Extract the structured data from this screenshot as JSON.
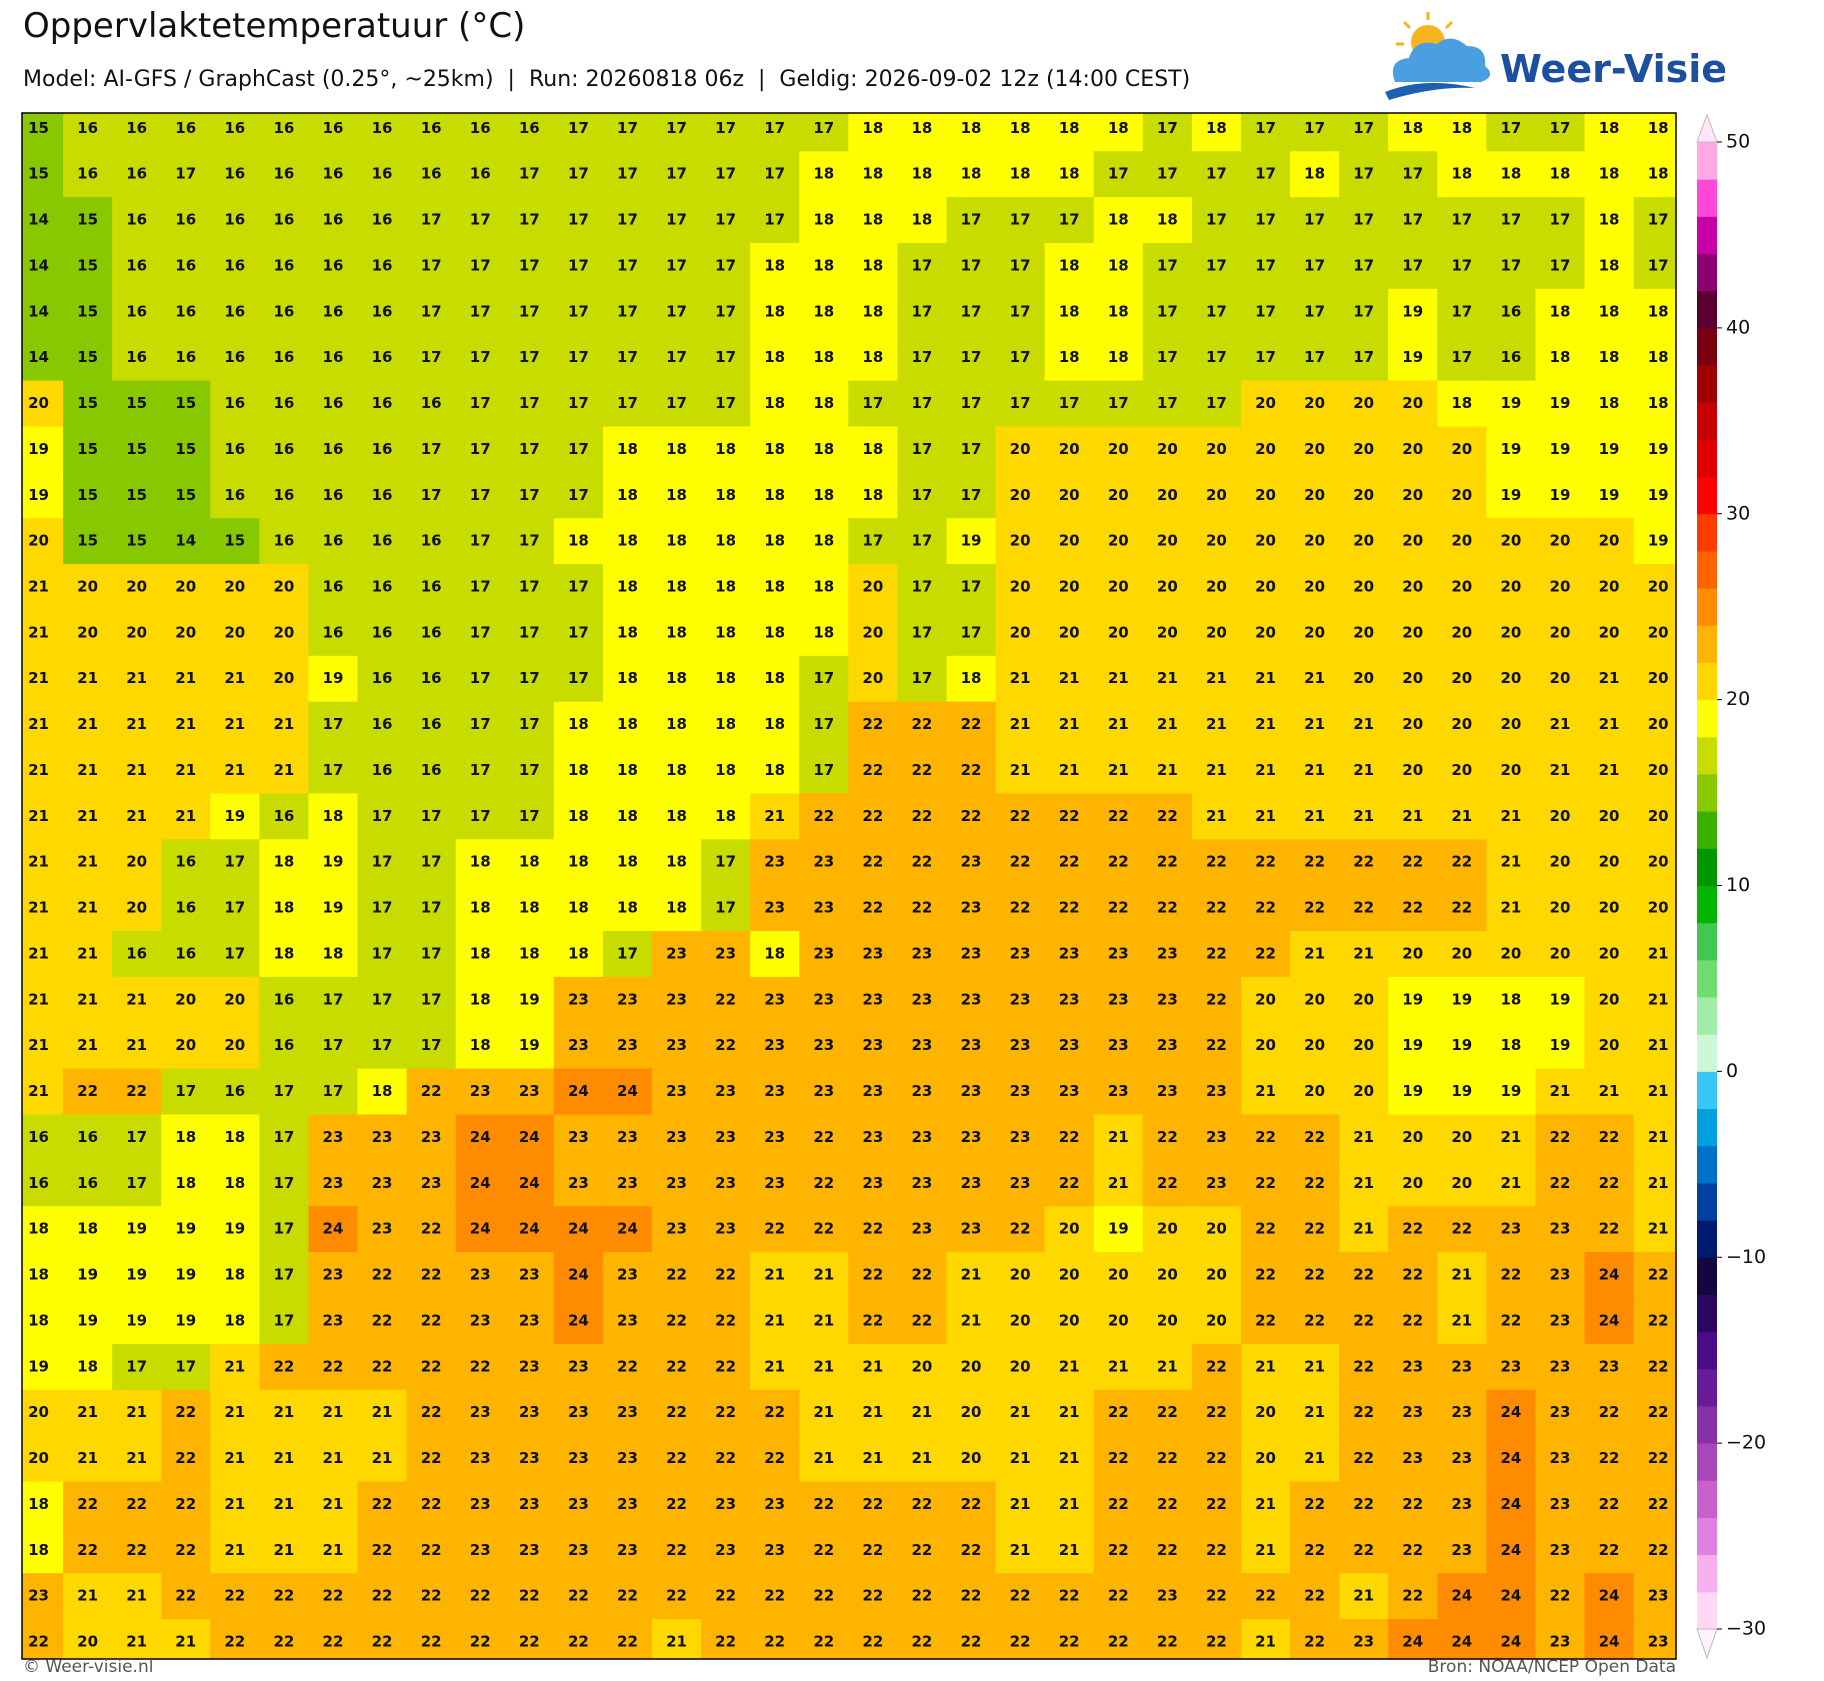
{
  "header": {
    "title": "Oppervlaktetemperatuur (°C)",
    "subtitle": "Model: AI-GFS / GraphCast (0.25°, ~25km)  |  Run: 20260818 06z  |  Geldig: 2026-09-02 12z (14:00 CEST)"
  },
  "logo": {
    "text": "Weer-Visie"
  },
  "chart_data": {
    "type": "heatmap",
    "values": [
      [
        15,
        16,
        16,
        16,
        16,
        16,
        16,
        16,
        16,
        16,
        16,
        17,
        17,
        17,
        17,
        17,
        17,
        18,
        18,
        18,
        18,
        18,
        18,
        17,
        18,
        17,
        17,
        17,
        18,
        18,
        17,
        17,
        18,
        18
      ],
      [
        15,
        16,
        16,
        17,
        16,
        16,
        16,
        16,
        16,
        16,
        17,
        17,
        17,
        17,
        17,
        17,
        18,
        18,
        18,
        18,
        18,
        18,
        17,
        17,
        17,
        17,
        18,
        17,
        17,
        18,
        18,
        18,
        18,
        18
      ],
      [
        14,
        15,
        16,
        16,
        16,
        16,
        16,
        16,
        17,
        17,
        17,
        17,
        17,
        17,
        17,
        17,
        18,
        18,
        18,
        17,
        17,
        17,
        18,
        18,
        17,
        17,
        17,
        17,
        17,
        17,
        17,
        17,
        18,
        17
      ],
      [
        14,
        15,
        16,
        16,
        16,
        16,
        16,
        16,
        17,
        17,
        17,
        17,
        17,
        17,
        17,
        18,
        18,
        18,
        17,
        17,
        17,
        18,
        18,
        17,
        17,
        17,
        17,
        17,
        17,
        17,
        17,
        17,
        18,
        17
      ],
      [
        14,
        15,
        16,
        16,
        16,
        16,
        16,
        16,
        17,
        17,
        17,
        17,
        17,
        17,
        17,
        18,
        18,
        18,
        17,
        17,
        17,
        18,
        18,
        17,
        17,
        17,
        17,
        17,
        19,
        17,
        16,
        18,
        18,
        18
      ],
      [
        14,
        15,
        16,
        16,
        16,
        16,
        16,
        16,
        17,
        17,
        17,
        17,
        17,
        17,
        17,
        18,
        18,
        18,
        17,
        17,
        17,
        18,
        18,
        17,
        17,
        17,
        17,
        17,
        19,
        17,
        16,
        18,
        18,
        18
      ],
      [
        20,
        15,
        15,
        15,
        16,
        16,
        16,
        16,
        16,
        17,
        17,
        17,
        17,
        17,
        17,
        18,
        18,
        17,
        17,
        17,
        17,
        17,
        17,
        17,
        17,
        20,
        20,
        20,
        20,
        18,
        19,
        19,
        18,
        18
      ],
      [
        19,
        15,
        15,
        15,
        16,
        16,
        16,
        16,
        17,
        17,
        17,
        17,
        18,
        18,
        18,
        18,
        18,
        18,
        17,
        17,
        20,
        20,
        20,
        20,
        20,
        20,
        20,
        20,
        20,
        20,
        19,
        19,
        19,
        19
      ],
      [
        19,
        15,
        15,
        15,
        16,
        16,
        16,
        16,
        17,
        17,
        17,
        17,
        18,
        18,
        18,
        18,
        18,
        18,
        17,
        17,
        20,
        20,
        20,
        20,
        20,
        20,
        20,
        20,
        20,
        20,
        19,
        19,
        19,
        19
      ],
      [
        20,
        15,
        15,
        14,
        15,
        16,
        16,
        16,
        16,
        17,
        17,
        18,
        18,
        18,
        18,
        18,
        18,
        17,
        17,
        19,
        20,
        20,
        20,
        20,
        20,
        20,
        20,
        20,
        20,
        20,
        20,
        20,
        20,
        19
      ],
      [
        21,
        20,
        20,
        20,
        20,
        20,
        16,
        16,
        16,
        17,
        17,
        17,
        18,
        18,
        18,
        18,
        18,
        20,
        17,
        17,
        20,
        20,
        20,
        20,
        20,
        20,
        20,
        20,
        20,
        20,
        20,
        20,
        20,
        20
      ],
      [
        21,
        20,
        20,
        20,
        20,
        20,
        16,
        16,
        16,
        17,
        17,
        17,
        18,
        18,
        18,
        18,
        18,
        20,
        17,
        17,
        20,
        20,
        20,
        20,
        20,
        20,
        20,
        20,
        20,
        20,
        20,
        20,
        20,
        20
      ],
      [
        21,
        21,
        21,
        21,
        21,
        20,
        19,
        16,
        16,
        17,
        17,
        17,
        18,
        18,
        18,
        18,
        17,
        20,
        17,
        18,
        21,
        21,
        21,
        21,
        21,
        21,
        21,
        20,
        20,
        20,
        20,
        20,
        21,
        20
      ],
      [
        21,
        21,
        21,
        21,
        21,
        21,
        17,
        16,
        16,
        17,
        17,
        18,
        18,
        18,
        18,
        18,
        17,
        22,
        22,
        22,
        21,
        21,
        21,
        21,
        21,
        21,
        21,
        21,
        20,
        20,
        20,
        21,
        21,
        20
      ],
      [
        21,
        21,
        21,
        21,
        21,
        21,
        17,
        16,
        16,
        17,
        17,
        18,
        18,
        18,
        18,
        18,
        17,
        22,
        22,
        22,
        21,
        21,
        21,
        21,
        21,
        21,
        21,
        21,
        20,
        20,
        20,
        21,
        21,
        20
      ],
      [
        21,
        21,
        21,
        21,
        19,
        16,
        18,
        17,
        17,
        17,
        17,
        18,
        18,
        18,
        18,
        21,
        22,
        22,
        22,
        22,
        22,
        22,
        22,
        22,
        21,
        21,
        21,
        21,
        21,
        21,
        21,
        20,
        20,
        20
      ],
      [
        21,
        21,
        20,
        16,
        17,
        18,
        19,
        17,
        17,
        18,
        18,
        18,
        18,
        18,
        17,
        23,
        23,
        22,
        22,
        23,
        22,
        22,
        22,
        22,
        22,
        22,
        22,
        22,
        22,
        22,
        21,
        20,
        20,
        20
      ],
      [
        21,
        21,
        20,
        16,
        17,
        18,
        19,
        17,
        17,
        18,
        18,
        18,
        18,
        18,
        17,
        23,
        23,
        22,
        22,
        23,
        22,
        22,
        22,
        22,
        22,
        22,
        22,
        22,
        22,
        22,
        21,
        20,
        20,
        20
      ],
      [
        21,
        21,
        16,
        16,
        17,
        18,
        18,
        17,
        17,
        18,
        18,
        18,
        17,
        23,
        23,
        18,
        23,
        23,
        23,
        23,
        23,
        23,
        23,
        23,
        22,
        22,
        21,
        21,
        20,
        20,
        20,
        20,
        20,
        21
      ],
      [
        21,
        21,
        21,
        20,
        20,
        16,
        17,
        17,
        17,
        18,
        19,
        23,
        23,
        23,
        22,
        23,
        23,
        23,
        23,
        23,
        23,
        23,
        23,
        23,
        22,
        20,
        20,
        20,
        19,
        19,
        18,
        19,
        20,
        21
      ],
      [
        21,
        21,
        21,
        20,
        20,
        16,
        17,
        17,
        17,
        18,
        19,
        23,
        23,
        23,
        22,
        23,
        23,
        23,
        23,
        23,
        23,
        23,
        23,
        23,
        22,
        20,
        20,
        20,
        19,
        19,
        18,
        19,
        20,
        21
      ],
      [
        21,
        22,
        22,
        17,
        16,
        17,
        17,
        18,
        22,
        23,
        23,
        24,
        24,
        23,
        23,
        23,
        23,
        23,
        23,
        23,
        23,
        23,
        23,
        23,
        23,
        21,
        20,
        20,
        19,
        19,
        19,
        21,
        21,
        21
      ],
      [
        16,
        16,
        17,
        18,
        18,
        17,
        23,
        23,
        23,
        24,
        24,
        23,
        23,
        23,
        23,
        23,
        22,
        23,
        23,
        23,
        23,
        22,
        21,
        22,
        23,
        22,
        22,
        21,
        20,
        20,
        21,
        22,
        22,
        21
      ],
      [
        16,
        16,
        17,
        18,
        18,
        17,
        23,
        23,
        23,
        24,
        24,
        23,
        23,
        23,
        23,
        23,
        22,
        23,
        23,
        23,
        23,
        22,
        21,
        22,
        23,
        22,
        22,
        21,
        20,
        20,
        21,
        22,
        22,
        21
      ],
      [
        18,
        18,
        19,
        19,
        19,
        17,
        24,
        23,
        22,
        24,
        24,
        24,
        24,
        23,
        23,
        22,
        22,
        22,
        23,
        23,
        22,
        20,
        19,
        20,
        20,
        22,
        22,
        21,
        22,
        22,
        23,
        23,
        22,
        21
      ],
      [
        18,
        19,
        19,
        19,
        18,
        17,
        23,
        22,
        22,
        23,
        23,
        24,
        23,
        22,
        22,
        21,
        21,
        22,
        22,
        21,
        20,
        20,
        20,
        20,
        20,
        22,
        22,
        22,
        22,
        21,
        22,
        23,
        24,
        22
      ],
      [
        18,
        19,
        19,
        19,
        18,
        17,
        23,
        22,
        22,
        23,
        23,
        24,
        23,
        22,
        22,
        21,
        21,
        22,
        22,
        21,
        20,
        20,
        20,
        20,
        20,
        22,
        22,
        22,
        22,
        21,
        22,
        23,
        24,
        22
      ],
      [
        19,
        18,
        17,
        17,
        21,
        22,
        22,
        22,
        22,
        22,
        23,
        23,
        22,
        22,
        22,
        21,
        21,
        21,
        20,
        20,
        20,
        21,
        21,
        21,
        22,
        21,
        21,
        22,
        23,
        23,
        23,
        23,
        23,
        22
      ],
      [
        20,
        21,
        21,
        22,
        21,
        21,
        21,
        21,
        22,
        23,
        23,
        23,
        23,
        22,
        22,
        22,
        21,
        21,
        21,
        20,
        21,
        21,
        22,
        22,
        22,
        20,
        21,
        22,
        23,
        23,
        24,
        23,
        22,
        22
      ],
      [
        20,
        21,
        21,
        22,
        21,
        21,
        21,
        21,
        22,
        23,
        23,
        23,
        23,
        22,
        22,
        22,
        21,
        21,
        21,
        20,
        21,
        21,
        22,
        22,
        22,
        20,
        21,
        22,
        23,
        23,
        24,
        23,
        22,
        22
      ],
      [
        18,
        22,
        22,
        22,
        21,
        21,
        21,
        22,
        22,
        23,
        23,
        23,
        23,
        22,
        23,
        23,
        22,
        22,
        22,
        22,
        21,
        21,
        22,
        22,
        22,
        21,
        22,
        22,
        22,
        23,
        24,
        23,
        22,
        22
      ],
      [
        18,
        22,
        22,
        22,
        21,
        21,
        21,
        22,
        22,
        23,
        23,
        23,
        23,
        22,
        23,
        23,
        22,
        22,
        22,
        22,
        21,
        21,
        22,
        22,
        22,
        21,
        22,
        22,
        22,
        23,
        24,
        23,
        22,
        22
      ],
      [
        23,
        21,
        21,
        22,
        22,
        22,
        22,
        22,
        22,
        22,
        22,
        22,
        22,
        22,
        22,
        22,
        22,
        22,
        22,
        22,
        22,
        22,
        22,
        23,
        22,
        22,
        22,
        21,
        22,
        24,
        24,
        22,
        24,
        23
      ],
      [
        22,
        20,
        21,
        21,
        22,
        22,
        22,
        22,
        22,
        22,
        22,
        22,
        22,
        21,
        22,
        22,
        22,
        22,
        22,
        22,
        22,
        22,
        22,
        22,
        22,
        21,
        22,
        23,
        24,
        24,
        24,
        23,
        24,
        23
      ]
    ],
    "colorbar": {
      "clim": [
        -30,
        50
      ],
      "ticks": [
        50,
        40,
        30,
        20,
        10,
        0,
        {
          "value": -10,
          "label": "−10"
        },
        {
          "value": -20,
          "label": "−20"
        },
        {
          "value": -30,
          "label": "−30"
        }
      ],
      "colors": [
        "#ffd8f6",
        "#f8b0ee",
        "#e080e0",
        "#c860cc",
        "#a848b8",
        "#8830a8",
        "#681c98",
        "#480c88",
        "#2a0860",
        "#140640",
        "#001a70",
        "#0040a0",
        "#0070c8",
        "#00a0e0",
        "#38c8f8",
        "#ccf8d8",
        "#a0eca8",
        "#70dc70",
        "#40c850",
        "#00b400",
        "#009600",
        "#3cb000",
        "#88c800",
        "#c8dc00",
        "#ffff00",
        "#ffd800",
        "#ffb400",
        "#ff8c00",
        "#ff6400",
        "#ff3c00",
        "#ff0000",
        "#e00000",
        "#c80000",
        "#a00000",
        "#780010",
        "#5a0030",
        "#8c0070",
        "#c800a8",
        "#ff48d8",
        "#ffa8e4"
      ]
    }
  },
  "footer": {
    "left": "© Weer-visie.nl",
    "right": "Bron: NOAA/NCEP Open Data"
  }
}
